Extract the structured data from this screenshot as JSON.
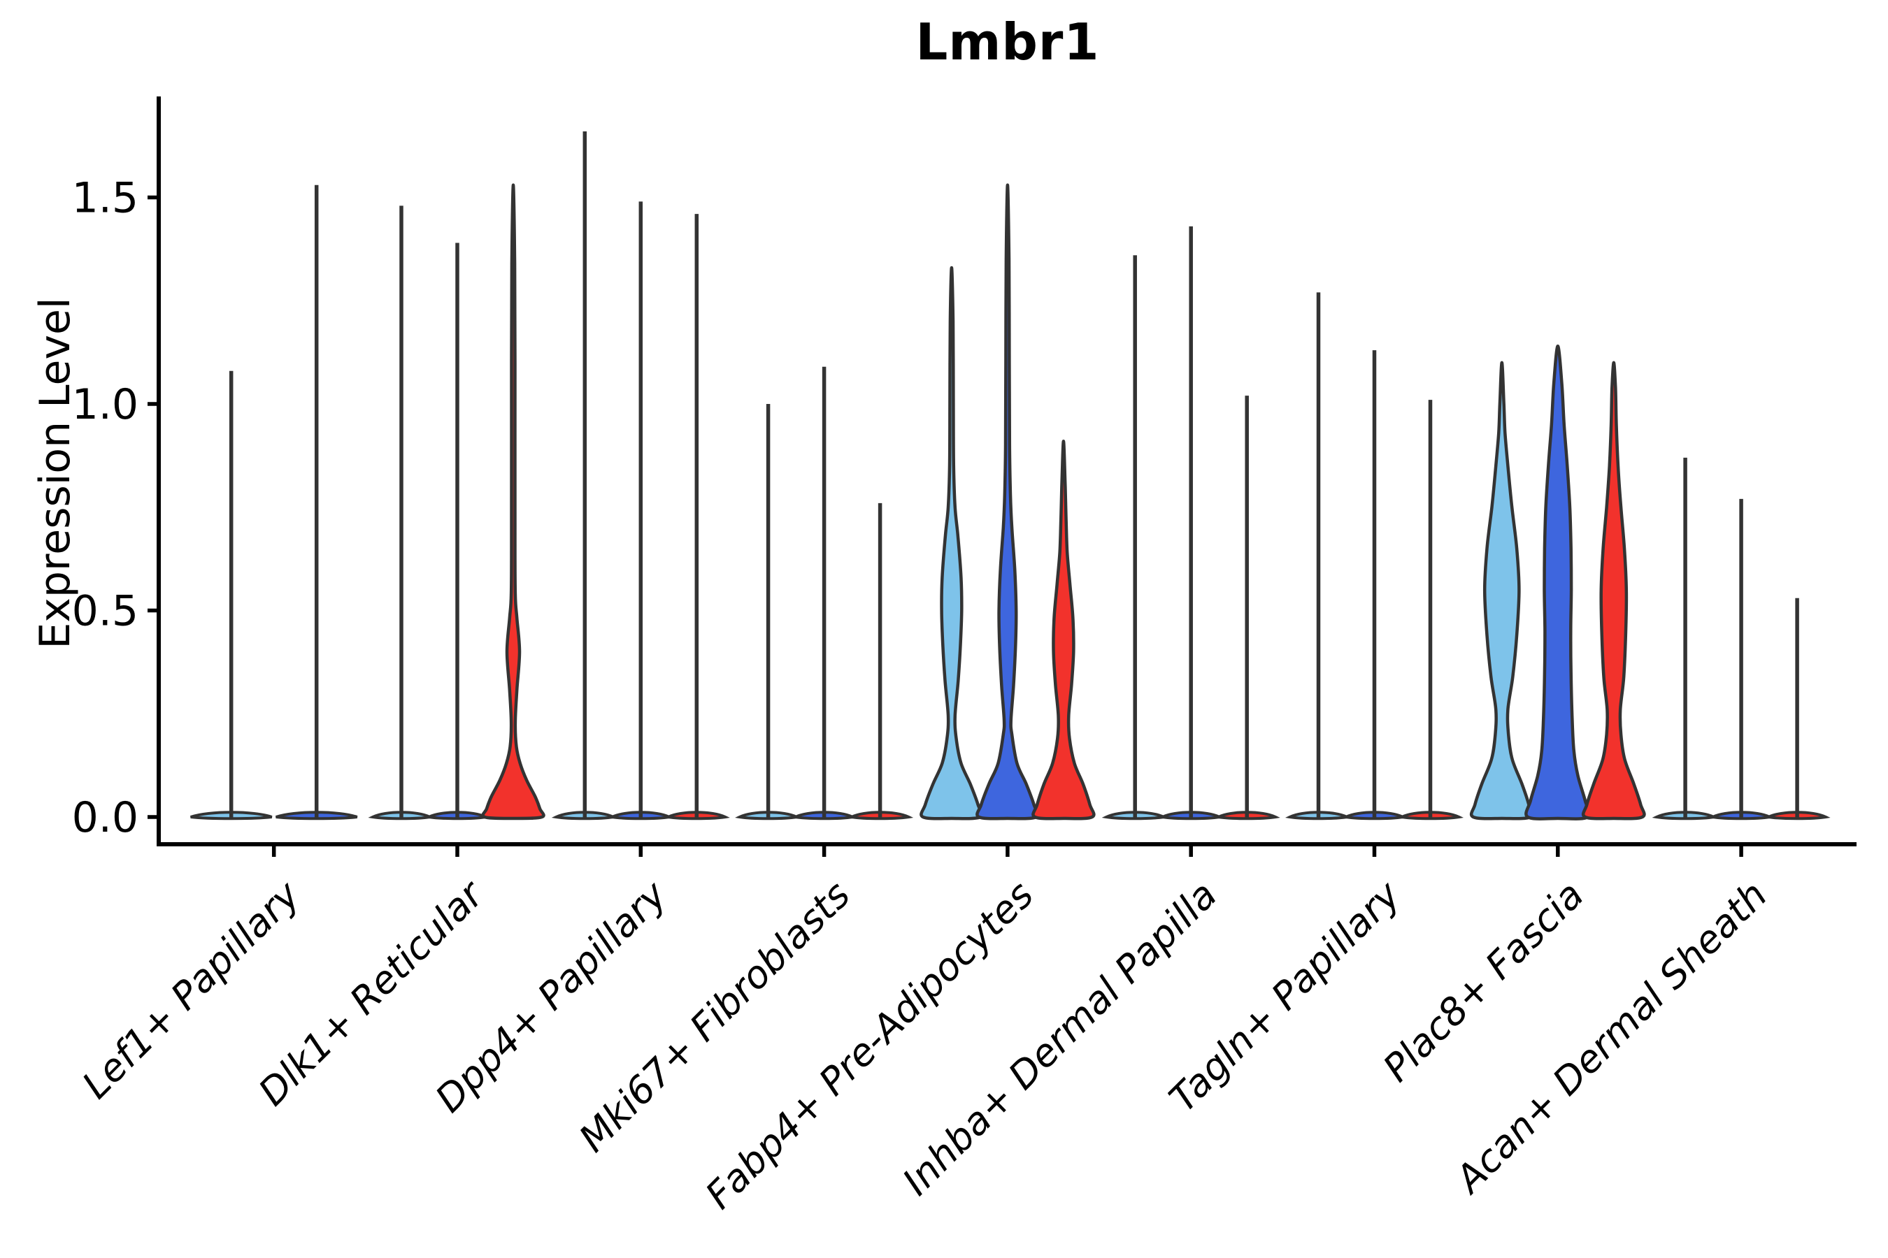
{
  "chart_data": {
    "type": "violin",
    "title": "Lmbr1",
    "xlabel": "",
    "ylabel": "Expression Level",
    "legend": "none",
    "grid": false,
    "ylim": [
      -0.08,
      1.76
    ],
    "yticks": [
      {
        "v": 0.0,
        "label": "0.0"
      },
      {
        "v": 0.5,
        "label": "0.5"
      },
      {
        "v": 1.0,
        "label": "1.0"
      },
      {
        "v": 1.5,
        "label": "1.5"
      }
    ],
    "group_colors": {
      "lightblue": "#7EC3EA",
      "blue": "#3E66DE",
      "red": "#F2322C"
    },
    "outline_color": "#333333",
    "axis_color": "#000000",
    "categories": [
      {
        "label": "Lef1+ Papillary",
        "violins": [
          {
            "group": "lightblue",
            "shape": "spike",
            "max": 1.08
          },
          {
            "group": "blue",
            "shape": "spike",
            "max": 1.53
          }
        ]
      },
      {
        "label": "Dlk1+ Reticular",
        "violins": [
          {
            "group": "lightblue",
            "shape": "spike",
            "max": 1.48
          },
          {
            "group": "blue",
            "shape": "spike",
            "max": 1.39
          },
          {
            "group": "red",
            "shape": "profile",
            "max": 1.53,
            "profile": [
              [
                0,
                1.0
              ],
              [
                0.02,
                0.93
              ],
              [
                0.05,
                0.76
              ],
              [
                0.09,
                0.46
              ],
              [
                0.13,
                0.24
              ],
              [
                0.17,
                0.11
              ],
              [
                0.23,
                0.07
              ],
              [
                0.31,
                0.13
              ],
              [
                0.4,
                0.22
              ],
              [
                0.48,
                0.13
              ],
              [
                0.54,
                0.07
              ],
              [
                0.7,
                0.06
              ],
              [
                1.1,
                0.06
              ],
              [
                1.35,
                0.05
              ],
              [
                1.53,
                0.0
              ]
            ]
          }
        ]
      },
      {
        "label": "Dpp4+ Papillary",
        "violins": [
          {
            "group": "lightblue",
            "shape": "spike",
            "max": 1.66
          },
          {
            "group": "blue",
            "shape": "spike",
            "max": 1.49
          },
          {
            "group": "red",
            "shape": "spike",
            "max": 1.46
          }
        ]
      },
      {
        "label": "Mki67+ Fibroblasts",
        "violins": [
          {
            "group": "lightblue",
            "shape": "spike",
            "max": 1.0
          },
          {
            "group": "blue",
            "shape": "spike",
            "max": 1.09
          },
          {
            "group": "red",
            "shape": "spike",
            "max": 0.76
          }
        ]
      },
      {
        "label": "Fabp4+ Pre-Adipocytes",
        "violins": [
          {
            "group": "lightblue",
            "shape": "profile",
            "max": 1.33,
            "profile": [
              [
                0,
                1.0
              ],
              [
                0.03,
                0.92
              ],
              [
                0.08,
                0.65
              ],
              [
                0.13,
                0.33
              ],
              [
                0.19,
                0.16
              ],
              [
                0.245,
                0.12
              ],
              [
                0.33,
                0.23
              ],
              [
                0.42,
                0.31
              ],
              [
                0.5,
                0.35
              ],
              [
                0.58,
                0.33
              ],
              [
                0.68,
                0.22
              ],
              [
                0.75,
                0.12
              ],
              [
                0.85,
                0.07
              ],
              [
                1.0,
                0.06
              ],
              [
                1.2,
                0.05
              ],
              [
                1.33,
                0.0
              ]
            ]
          },
          {
            "group": "blue",
            "shape": "profile",
            "max": 1.53,
            "profile": [
              [
                0,
                1.0
              ],
              [
                0.03,
                0.92
              ],
              [
                0.08,
                0.65
              ],
              [
                0.13,
                0.33
              ],
              [
                0.2,
                0.15
              ],
              [
                0.235,
                0.12
              ],
              [
                0.32,
                0.21
              ],
              [
                0.42,
                0.28
              ],
              [
                0.5,
                0.3
              ],
              [
                0.6,
                0.25
              ],
              [
                0.7,
                0.15
              ],
              [
                0.78,
                0.1
              ],
              [
                0.9,
                0.07
              ],
              [
                1.1,
                0.06
              ],
              [
                1.35,
                0.05
              ],
              [
                1.53,
                0.0
              ]
            ]
          },
          {
            "group": "red",
            "shape": "profile",
            "max": 0.91,
            "profile": [
              [
                0,
                1.0
              ],
              [
                0.03,
                0.92
              ],
              [
                0.08,
                0.68
              ],
              [
                0.13,
                0.38
              ],
              [
                0.19,
                0.21
              ],
              [
                0.245,
                0.18
              ],
              [
                0.32,
                0.28
              ],
              [
                0.4,
                0.35
              ],
              [
                0.48,
                0.33
              ],
              [
                0.56,
                0.23
              ],
              [
                0.64,
                0.13
              ],
              [
                0.72,
                0.09
              ],
              [
                0.8,
                0.06
              ],
              [
                0.91,
                0.0
              ]
            ]
          }
        ]
      },
      {
        "label": "Inhba+ Dermal Papilla",
        "violins": [
          {
            "group": "lightblue",
            "shape": "spike",
            "max": 1.36
          },
          {
            "group": "blue",
            "shape": "spike",
            "max": 1.43
          },
          {
            "group": "red",
            "shape": "spike",
            "max": 1.02
          }
        ]
      },
      {
        "label": "Tagln+ Papillary",
        "violins": [
          {
            "group": "lightblue",
            "shape": "spike",
            "max": 1.27
          },
          {
            "group": "blue",
            "shape": "spike",
            "max": 1.13
          },
          {
            "group": "red",
            "shape": "spike",
            "max": 1.01
          }
        ]
      },
      {
        "label": "Plac8+ Fascia",
        "violins": [
          {
            "group": "lightblue",
            "shape": "profile",
            "max": 1.1,
            "profile": [
              [
                0,
                1.0
              ],
              [
                0.03,
                0.94
              ],
              [
                0.08,
                0.7
              ],
              [
                0.14,
                0.36
              ],
              [
                0.2,
                0.23
              ],
              [
                0.26,
                0.21
              ],
              [
                0.34,
                0.38
              ],
              [
                0.44,
                0.52
              ],
              [
                0.55,
                0.6
              ],
              [
                0.65,
                0.52
              ],
              [
                0.75,
                0.35
              ],
              [
                0.85,
                0.21
              ],
              [
                0.93,
                0.11
              ],
              [
                1.0,
                0.07
              ],
              [
                1.1,
                0.0
              ]
            ]
          },
          {
            "group": "blue",
            "shape": "profile",
            "max": 1.14,
            "profile": [
              [
                0,
                1.05
              ],
              [
                0.04,
                0.95
              ],
              [
                0.1,
                0.7
              ],
              [
                0.16,
                0.56
              ],
              [
                0.24,
                0.5
              ],
              [
                0.35,
                0.46
              ],
              [
                0.45,
                0.45
              ],
              [
                0.55,
                0.47
              ],
              [
                0.65,
                0.46
              ],
              [
                0.75,
                0.42
              ],
              [
                0.85,
                0.33
              ],
              [
                0.95,
                0.22
              ],
              [
                1.05,
                0.14
              ],
              [
                1.14,
                0.0
              ]
            ]
          },
          {
            "group": "red",
            "shape": "profile",
            "max": 1.1,
            "profile": [
              [
                0,
                1.0
              ],
              [
                0.03,
                0.94
              ],
              [
                0.08,
                0.7
              ],
              [
                0.14,
                0.38
              ],
              [
                0.2,
                0.25
              ],
              [
                0.26,
                0.23
              ],
              [
                0.34,
                0.35
              ],
              [
                0.45,
                0.42
              ],
              [
                0.55,
                0.44
              ],
              [
                0.65,
                0.37
              ],
              [
                0.75,
                0.25
              ],
              [
                0.85,
                0.15
              ],
              [
                0.95,
                0.09
              ],
              [
                1.04,
                0.06
              ],
              [
                1.1,
                0.0
              ]
            ]
          }
        ]
      },
      {
        "label": "Acan+ Dermal Sheath",
        "violins": [
          {
            "group": "lightblue",
            "shape": "spike",
            "max": 0.87
          },
          {
            "group": "blue",
            "shape": "spike",
            "max": 0.77
          },
          {
            "group": "red",
            "shape": "spike",
            "max": 0.53
          }
        ]
      }
    ]
  }
}
